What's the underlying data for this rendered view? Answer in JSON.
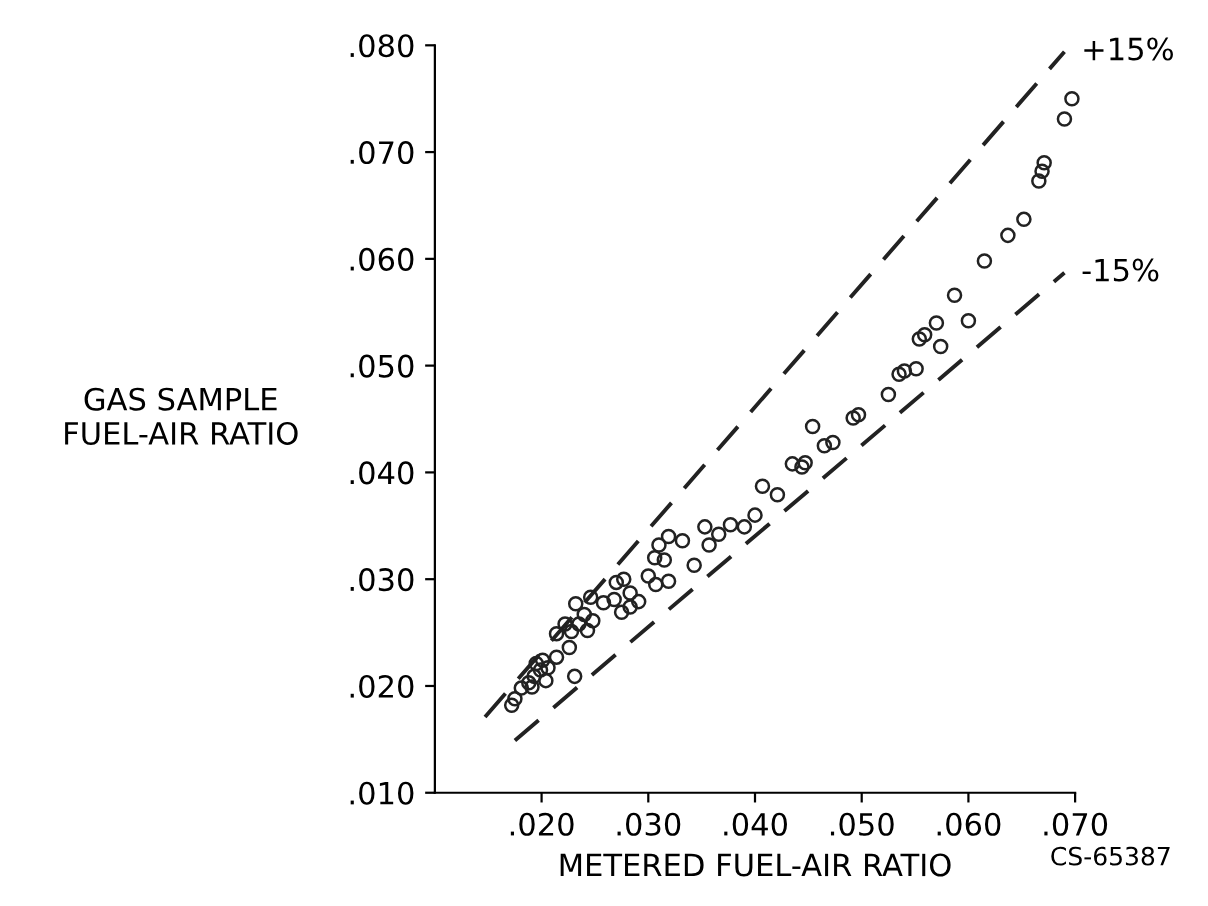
{
  "chart_data": {
    "type": "scatter",
    "xlabel": "METERED FUEL-AIR RATIO",
    "ylabel": "GAS SAMPLE\nFUEL-AIR RATIO",
    "xlim": [
      0.01,
      0.07
    ],
    "ylim": [
      0.01,
      0.08
    ],
    "xticks": [
      {
        "value": 0.02,
        "label": ".020"
      },
      {
        "value": 0.03,
        "label": ".030"
      },
      {
        "value": 0.04,
        "label": ".040"
      },
      {
        "value": 0.05,
        "label": ".050"
      },
      {
        "value": 0.06,
        "label": ".060"
      },
      {
        "value": 0.07,
        "label": ".070"
      }
    ],
    "yticks": [
      {
        "value": 0.01,
        "label": ".010"
      },
      {
        "value": 0.02,
        "label": ".020"
      },
      {
        "value": 0.03,
        "label": ".030"
      },
      {
        "value": 0.04,
        "label": ".040"
      },
      {
        "value": 0.05,
        "label": ".050"
      },
      {
        "value": 0.06,
        "label": ".060"
      },
      {
        "value": 0.07,
        "label": ".070"
      },
      {
        "value": 0.08,
        "label": ".080"
      }
    ],
    "grid": false,
    "legend": false,
    "series": [
      {
        "marker": "circle",
        "color": "#222222",
        "x": [
          0.0697,
          0.069,
          0.0671,
          0.0669,
          0.0666,
          0.0652,
          0.0637,
          0.0615,
          0.0587,
          0.06,
          0.057,
          0.0559,
          0.0554,
          0.0574,
          0.054,
          0.0535,
          0.0525,
          0.0551,
          0.0497,
          0.0492,
          0.0454,
          0.0473,
          0.0465,
          0.0447,
          0.0444,
          0.0435,
          0.0421,
          0.0407,
          0.04,
          0.039,
          0.0377,
          0.0366,
          0.0353,
          0.0357,
          0.0343,
          0.0332,
          0.0319,
          0.031,
          0.0315,
          0.0306,
          0.0319,
          0.0307,
          0.03,
          0.0291,
          0.0283,
          0.0277,
          0.0283,
          0.0275,
          0.0268,
          0.027,
          0.0258,
          0.0248,
          0.024,
          0.0243,
          0.0235,
          0.0228,
          0.0246,
          0.0232,
          0.0222,
          0.0226,
          0.0231,
          0.0214,
          0.0201,
          0.0206,
          0.0195,
          0.0204,
          0.0193,
          0.0188,
          0.0181,
          0.0175,
          0.0172,
          0.0191,
          0.0199,
          0.0214
        ],
        "values": [
          0.075,
          0.0731,
          0.069,
          0.0682,
          0.0673,
          0.0637,
          0.0622,
          0.0598,
          0.0566,
          0.0542,
          0.054,
          0.0529,
          0.0525,
          0.0518,
          0.0495,
          0.0492,
          0.0473,
          0.0497,
          0.0454,
          0.0451,
          0.0443,
          0.0428,
          0.0425,
          0.0409,
          0.0405,
          0.0408,
          0.0379,
          0.0387,
          0.036,
          0.0349,
          0.0351,
          0.0342,
          0.0349,
          0.0332,
          0.0313,
          0.0336,
          0.034,
          0.0332,
          0.0318,
          0.032,
          0.0298,
          0.0295,
          0.0303,
          0.0279,
          0.0287,
          0.03,
          0.0274,
          0.0269,
          0.0281,
          0.0297,
          0.0278,
          0.0261,
          0.0267,
          0.0252,
          0.0258,
          0.0251,
          0.0283,
          0.0277,
          0.0258,
          0.0236,
          0.0209,
          0.0227,
          0.0224,
          0.0217,
          0.0221,
          0.0205,
          0.0209,
          0.0203,
          0.0198,
          0.0188,
          0.0182,
          0.0199,
          0.0215,
          0.0249
        ]
      },
      {
        "type": "line",
        "line_style": "dashed",
        "color": "#222222",
        "x": [
          0.0147,
          0.069
        ],
        "values": [
          0.0171,
          0.0794
        ]
      },
      {
        "type": "line",
        "line_style": "dashed",
        "color": "#222222",
        "x": [
          0.0175,
          0.069
        ],
        "values": [
          0.0149,
          0.0587
        ]
      }
    ],
    "annotations": [
      {
        "text": "+15%",
        "x": 0.069,
        "y": 0.0794
      },
      {
        "text": "-15%",
        "x": 0.069,
        "y": 0.0587
      },
      "CS-65387"
    ]
  }
}
